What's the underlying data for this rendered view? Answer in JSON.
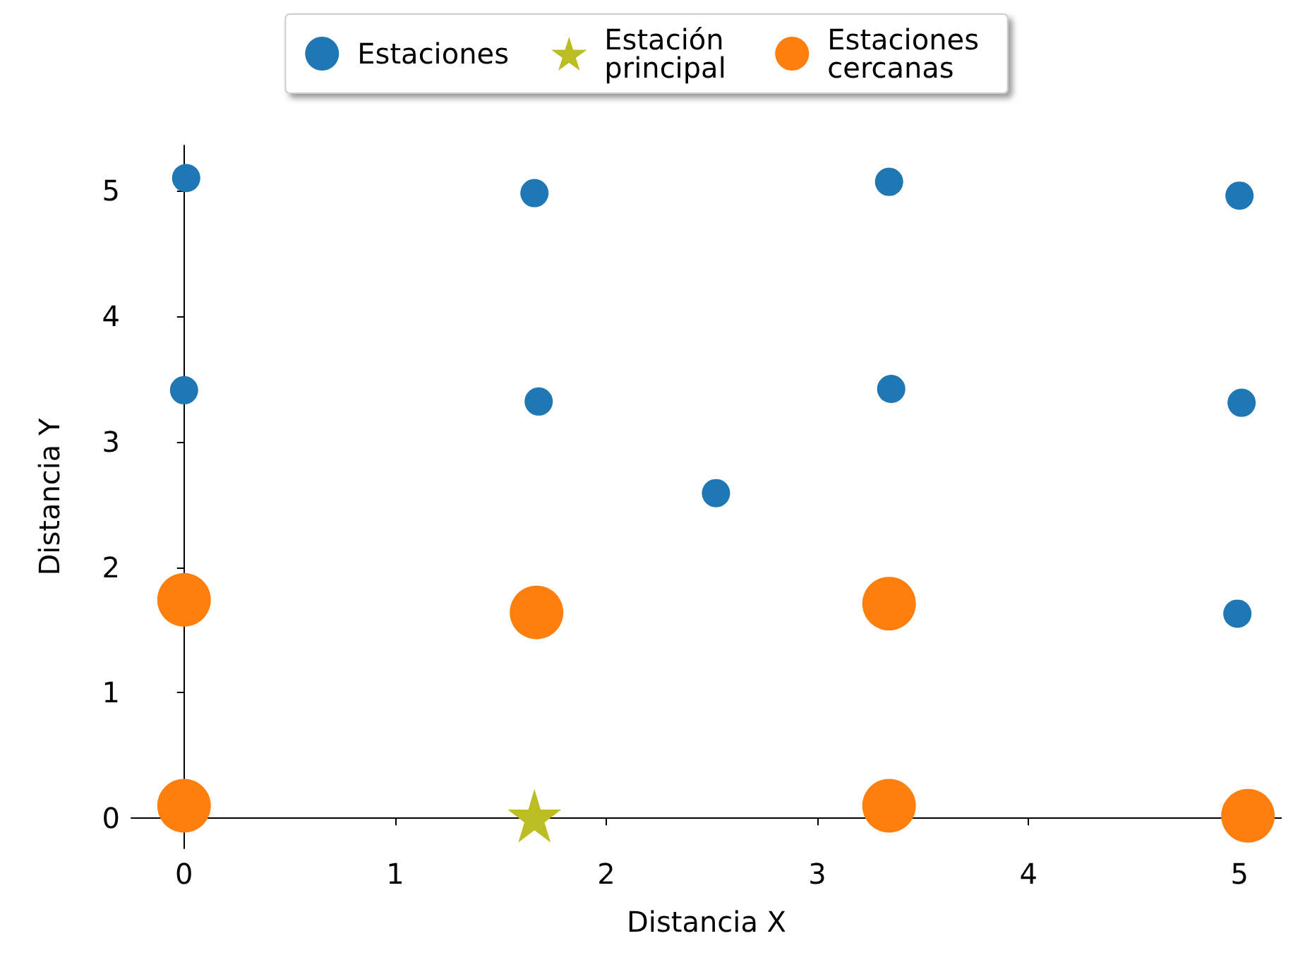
{
  "chart_data": {
    "type": "scatter",
    "xlabel": "Distancia X",
    "ylabel": "Distancia Y",
    "xlim": [
      -0.25,
      5.2
    ],
    "ylim": [
      -0.24,
      5.36
    ],
    "xticks": [
      0,
      1,
      2,
      3,
      4,
      5
    ],
    "yticks": [
      0,
      1,
      2,
      3,
      4,
      5
    ],
    "grid": false,
    "legend": "top",
    "series": [
      {
        "name": "Estaciones",
        "color": "#1f77b4",
        "marker": "circle",
        "x": [
          0.01,
          1.66,
          3.34,
          5.0,
          0.0,
          1.68,
          3.35,
          5.01,
          2.52,
          4.99
        ],
        "values": [
          5.1,
          4.98,
          5.07,
          4.96,
          3.41,
          3.32,
          3.42,
          3.31,
          2.59,
          1.63
        ]
      },
      {
        "name": "Estación principal",
        "color": "#bcbd22",
        "marker": "star",
        "x": [
          1.66
        ],
        "values": [
          0.02
        ]
      },
      {
        "name": "Estaciones cercanas",
        "color": "#ff7f0e",
        "marker": "circle",
        "x": [
          0.0,
          1.67,
          3.34,
          0.0,
          3.34,
          5.04
        ],
        "values": [
          1.74,
          1.64,
          1.71,
          0.1,
          0.1,
          0.02
        ]
      }
    ]
  }
}
